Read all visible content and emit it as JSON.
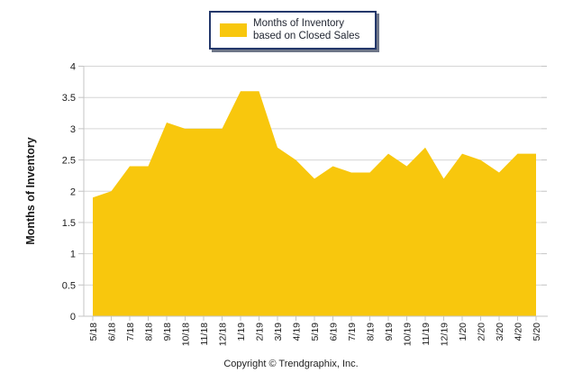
{
  "page": {
    "background_color": "#ffffff"
  },
  "legend": {
    "label": "Months of Inventory based on Closed Sales",
    "swatch_color": "#F8C70D",
    "border_color": "#24386B"
  },
  "footer": {
    "copyright": "Copyright © Trendgraphix, Inc."
  },
  "chart_data": {
    "type": "area",
    "title": "",
    "xlabel": "",
    "ylabel": "Months of Inventory",
    "legend_position": "top-center",
    "grid": true,
    "gridline_color": "#d6d6d6",
    "axis_color": "#c4c4c4",
    "ylim": [
      0,
      4
    ],
    "ytick_step": 0.5,
    "yticks": [
      0,
      0.5,
      1,
      1.5,
      2,
      2.5,
      3,
      3.5,
      4
    ],
    "ytick_labels": [
      "0",
      "0.5",
      "1",
      "1.5",
      "2",
      "2.5",
      "3",
      "3.5",
      "4"
    ],
    "categories": [
      "5/18",
      "6/18",
      "7/18",
      "8/18",
      "9/18",
      "10/18",
      "11/18",
      "12/18",
      "1/19",
      "2/19",
      "3/19",
      "4/19",
      "5/19",
      "6/19",
      "7/19",
      "8/19",
      "9/19",
      "10/19",
      "11/19",
      "12/19",
      "1/20",
      "2/20",
      "3/20",
      "4/20",
      "5/20"
    ],
    "series": [
      {
        "name": "Months of Inventory based on Closed Sales",
        "color": "#F8C70D",
        "values": [
          1.9,
          2.0,
          2.4,
          2.4,
          3.1,
          3.0,
          3.0,
          3.0,
          3.6,
          3.6,
          2.7,
          2.5,
          2.2,
          2.4,
          2.3,
          2.3,
          2.6,
          2.4,
          2.7,
          2.2,
          2.6,
          2.5,
          2.3,
          2.6,
          2.6
        ]
      }
    ]
  }
}
